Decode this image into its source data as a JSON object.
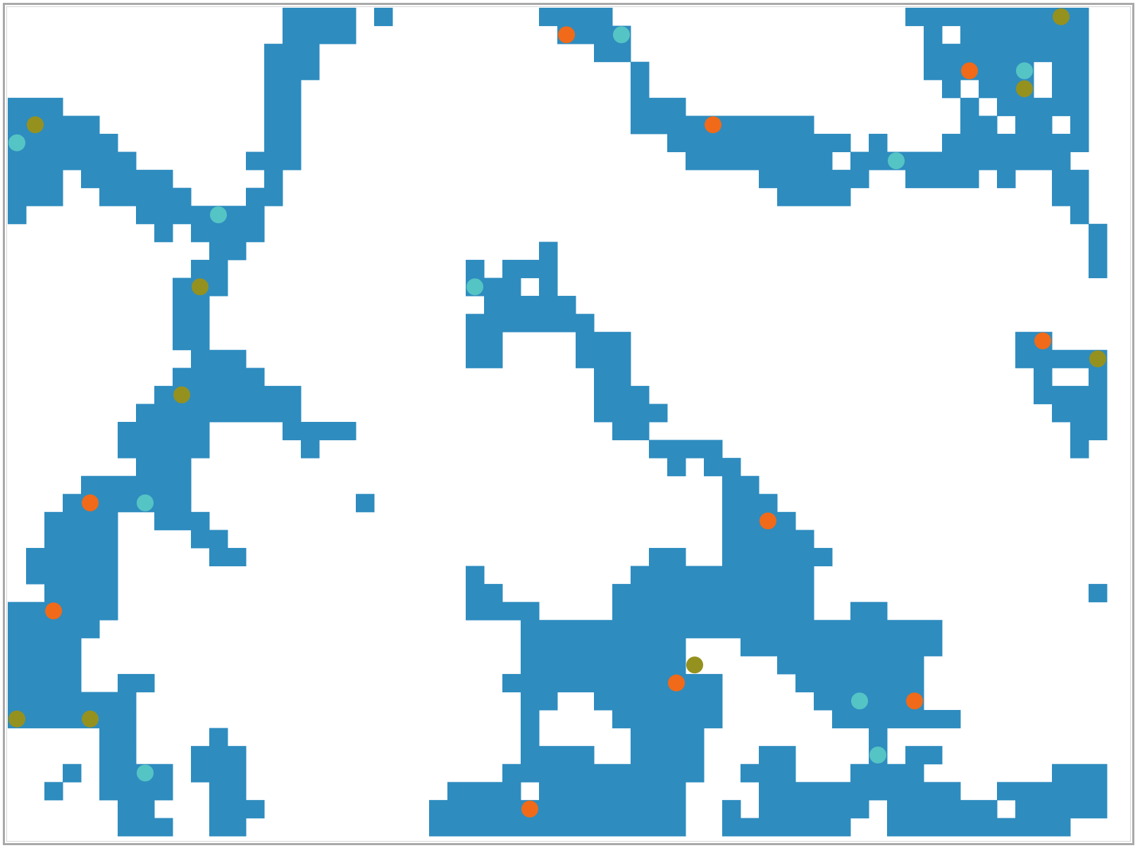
{
  "board": {
    "cols": 61,
    "rows": 46,
    "wall_color": "#2e8cbf",
    "floor_color": "#ffffff",
    "grid_rows": [
      "...............####.#.........####..........................#",
      "...............####..............##.........................#",
      "...............###.................#.........................",
      "...............###.................#.........................",
      "...............##..................#.........................",
      "..............###..................#.........................",
      "..............###..................#.........................",
      "..............###..................#.........................",
      "...............#.............................................",
      "..............##.............................................",
      "..............##.............................................",
      "..............##.............................................",
      "..............##.............................................",
      "..............##.............................................",
      "..............##.............................................",
      "..............##.............................................",
      "..............##.............................................",
      "..............##.............................................",
      "..............##.............................................",
      "..............##.............................................",
      "..............##.............................................",
      "..............##.............................................",
      "..............##.............................................",
      "..............##.............................................",
      "..............##.............................................",
      "..............##.............................................",
      "..............##.............................................",
      "..............##.............................................",
      "..............##.............................................",
      "..............##.............................................",
      "..............##.............................................",
      "..............##.............................................",
      "..............##.............................................",
      "..............##.............................................",
      "..............##.............................................",
      "..............##.............................................",
      "..............##.............................................",
      "..............##.............................................",
      "..............##.............................................",
      "..............##.............................................",
      "..............##.............................................",
      "..............##.............................................",
      "..............##.............................................",
      "..............##.............................................",
      "..............##.............................................",
      "..............##............................................."
    ],
    "wall_rects": [
      [
        15,
        0,
        4,
        1
      ],
      [
        20,
        0,
        1,
        1
      ],
      [
        29,
        0,
        4,
        1
      ],
      [
        49,
        0,
        10,
        1
      ],
      [
        15,
        1,
        4,
        1
      ],
      [
        30,
        1,
        4,
        1
      ],
      [
        50,
        1,
        1,
        1
      ],
      [
        52,
        1,
        7,
        1
      ],
      [
        14,
        2,
        3,
        1
      ],
      [
        32,
        2,
        2,
        1
      ],
      [
        50,
        2,
        9,
        1
      ],
      [
        14,
        3,
        3,
        1
      ],
      [
        34,
        3,
        1,
        1
      ],
      [
        50,
        3,
        6,
        1
      ],
      [
        57,
        3,
        2,
        1
      ],
      [
        14,
        4,
        2,
        1
      ],
      [
        34,
        4,
        1,
        1
      ],
      [
        51,
        4,
        1,
        1
      ],
      [
        53,
        4,
        3,
        1
      ],
      [
        57,
        4,
        2,
        1
      ],
      [
        0,
        5,
        3,
        1
      ],
      [
        14,
        5,
        2,
        1
      ],
      [
        34,
        5,
        3,
        1
      ],
      [
        52,
        5,
        1,
        1
      ],
      [
        54,
        5,
        4,
        1
      ],
      [
        58,
        5,
        1,
        1
      ],
      [
        0,
        6,
        5,
        1
      ],
      [
        14,
        6,
        2,
        1
      ],
      [
        34,
        6,
        10,
        1
      ],
      [
        52,
        6,
        2,
        1
      ],
      [
        55,
        6,
        2,
        1
      ],
      [
        58,
        6,
        1,
        1
      ],
      [
        0,
        7,
        6,
        1
      ],
      [
        14,
        7,
        2,
        1
      ],
      [
        36,
        7,
        10,
        1
      ],
      [
        47,
        7,
        1,
        1
      ],
      [
        51,
        7,
        8,
        1
      ],
      [
        0,
        8,
        7,
        1
      ],
      [
        13,
        8,
        3,
        1
      ],
      [
        37,
        8,
        8,
        1
      ],
      [
        46,
        8,
        12,
        1
      ],
      [
        0,
        9,
        3,
        1
      ],
      [
        4,
        9,
        5,
        1
      ],
      [
        14,
        9,
        1,
        1
      ],
      [
        41,
        9,
        6,
        1
      ],
      [
        49,
        9,
        4,
        1
      ],
      [
        54,
        9,
        1,
        1
      ],
      [
        57,
        9,
        2,
        1
      ],
      [
        0,
        10,
        3,
        1
      ],
      [
        5,
        10,
        5,
        1
      ],
      [
        13,
        10,
        2,
        1
      ],
      [
        42,
        10,
        4,
        1
      ],
      [
        57,
        10,
        2,
        1
      ],
      [
        0,
        11,
        1,
        1
      ],
      [
        7,
        11,
        7,
        1
      ],
      [
        58,
        11,
        1,
        1
      ],
      [
        8,
        12,
        1,
        1
      ],
      [
        10,
        12,
        4,
        1
      ],
      [
        59,
        12,
        1,
        1
      ],
      [
        11,
        13,
        2,
        1
      ],
      [
        29,
        13,
        1,
        1
      ],
      [
        59,
        13,
        1,
        1
      ],
      [
        10,
        14,
        2,
        1
      ],
      [
        25,
        14,
        1,
        1
      ],
      [
        27,
        14,
        3,
        1
      ],
      [
        59,
        14,
        1,
        1
      ],
      [
        9,
        15,
        3,
        1
      ],
      [
        25,
        15,
        3,
        1
      ],
      [
        29,
        15,
        1,
        1
      ],
      [
        9,
        16,
        2,
        1
      ],
      [
        26,
        16,
        5,
        1
      ],
      [
        9,
        17,
        2,
        1
      ],
      [
        25,
        17,
        7,
        1
      ],
      [
        9,
        18,
        2,
        1
      ],
      [
        25,
        18,
        2,
        1
      ],
      [
        31,
        18,
        3,
        1
      ],
      [
        55,
        18,
        2,
        1
      ],
      [
        10,
        19,
        3,
        1
      ],
      [
        25,
        19,
        2,
        1
      ],
      [
        31,
        19,
        3,
        1
      ],
      [
        55,
        19,
        5,
        1
      ],
      [
        9,
        20,
        5,
        1
      ],
      [
        32,
        20,
        2,
        1
      ],
      [
        56,
        20,
        1,
        1
      ],
      [
        59,
        20,
        1,
        1
      ],
      [
        8,
        21,
        8,
        1
      ],
      [
        32,
        21,
        3,
        1
      ],
      [
        56,
        21,
        4,
        1
      ],
      [
        7,
        22,
        9,
        1
      ],
      [
        32,
        22,
        4,
        1
      ],
      [
        57,
        22,
        3,
        1
      ],
      [
        6,
        23,
        5,
        1
      ],
      [
        15,
        23,
        4,
        1
      ],
      [
        33,
        23,
        2,
        1
      ],
      [
        58,
        23,
        2,
        1
      ],
      [
        6,
        24,
        5,
        1
      ],
      [
        16,
        24,
        1,
        1
      ],
      [
        35,
        24,
        4,
        1
      ],
      [
        58,
        24,
        1,
        1
      ],
      [
        7,
        25,
        3,
        1
      ],
      [
        36,
        25,
        1,
        1
      ],
      [
        38,
        25,
        2,
        1
      ],
      [
        4,
        26,
        6,
        1
      ],
      [
        39,
        26,
        2,
        1
      ],
      [
        3,
        27,
        7,
        1
      ],
      [
        19,
        27,
        1,
        1
      ],
      [
        39,
        27,
        3,
        1
      ],
      [
        2,
        28,
        4,
        1
      ],
      [
        8,
        28,
        3,
        1
      ],
      [
        39,
        28,
        4,
        1
      ],
      [
        2,
        29,
        4,
        1
      ],
      [
        10,
        29,
        2,
        1
      ],
      [
        39,
        29,
        5,
        1
      ],
      [
        1,
        30,
        5,
        1
      ],
      [
        11,
        30,
        2,
        1
      ],
      [
        35,
        30,
        2,
        1
      ],
      [
        39,
        30,
        6,
        1
      ],
      [
        1,
        31,
        5,
        1
      ],
      [
        25,
        31,
        1,
        1
      ],
      [
        34,
        31,
        10,
        1
      ],
      [
        2,
        32,
        4,
        1
      ],
      [
        25,
        32,
        2,
        1
      ],
      [
        33,
        32,
        11,
        1
      ],
      [
        59,
        32,
        1,
        1
      ],
      [
        0,
        33,
        6,
        1
      ],
      [
        25,
        33,
        4,
        1
      ],
      [
        33,
        33,
        11,
        1
      ],
      [
        46,
        33,
        2,
        1
      ],
      [
        0,
        34,
        5,
        1
      ],
      [
        28,
        34,
        23,
        1
      ],
      [
        0,
        35,
        4,
        1
      ],
      [
        28,
        35,
        9,
        1
      ],
      [
        40,
        35,
        11,
        1
      ],
      [
        0,
        36,
        4,
        1
      ],
      [
        28,
        36,
        9,
        1
      ],
      [
        42,
        36,
        8,
        1
      ],
      [
        0,
        37,
        4,
        1
      ],
      [
        6,
        37,
        2,
        1
      ],
      [
        27,
        37,
        12,
        1
      ],
      [
        43,
        37,
        7,
        1
      ],
      [
        0,
        38,
        7,
        1
      ],
      [
        28,
        38,
        2,
        1
      ],
      [
        32,
        38,
        7,
        1
      ],
      [
        44,
        38,
        6,
        1
      ],
      [
        0,
        39,
        7,
        1
      ],
      [
        28,
        39,
        1,
        1
      ],
      [
        33,
        39,
        6,
        1
      ],
      [
        45,
        39,
        7,
        1
      ],
      [
        5,
        40,
        2,
        1
      ],
      [
        11,
        40,
        1,
        1
      ],
      [
        28,
        40,
        1,
        1
      ],
      [
        34,
        40,
        4,
        1
      ],
      [
        47,
        40,
        1,
        1
      ],
      [
        5,
        41,
        2,
        1
      ],
      [
        10,
        41,
        3,
        1
      ],
      [
        28,
        41,
        4,
        1
      ],
      [
        34,
        41,
        4,
        1
      ],
      [
        41,
        41,
        2,
        1
      ],
      [
        47,
        41,
        1,
        1
      ],
      [
        49,
        41,
        2,
        1
      ],
      [
        3,
        42,
        1,
        1
      ],
      [
        5,
        42,
        4,
        1
      ],
      [
        10,
        42,
        3,
        1
      ],
      [
        27,
        42,
        11,
        1
      ],
      [
        40,
        42,
        3,
        1
      ],
      [
        46,
        42,
        4,
        1
      ],
      [
        57,
        42,
        3,
        1
      ],
      [
        2,
        43,
        1,
        1
      ],
      [
        5,
        43,
        4,
        1
      ],
      [
        11,
        43,
        2,
        1
      ],
      [
        24,
        43,
        4,
        1
      ],
      [
        29,
        43,
        8,
        1
      ],
      [
        41,
        43,
        11,
        1
      ],
      [
        54,
        43,
        6,
        1
      ],
      [
        6,
        44,
        2,
        1
      ],
      [
        11,
        44,
        3,
        1
      ],
      [
        23,
        44,
        14,
        1
      ],
      [
        39,
        44,
        1,
        1
      ],
      [
        41,
        44,
        6,
        1
      ],
      [
        48,
        44,
        6,
        1
      ],
      [
        55,
        44,
        5,
        1
      ],
      [
        6,
        45,
        3,
        1
      ],
      [
        11,
        45,
        2,
        1
      ],
      [
        23,
        45,
        14,
        1
      ],
      [
        39,
        45,
        7,
        1
      ],
      [
        48,
        45,
        10,
        1
      ]
    ],
    "markers": [
      {
        "type": "orange",
        "color": "#f06a19",
        "cells": [
          [
            30,
            1
          ],
          [
            52,
            3
          ],
          [
            38,
            6
          ],
          [
            4,
            27
          ],
          [
            56,
            18
          ],
          [
            41,
            28
          ],
          [
            2,
            33
          ],
          [
            36,
            37
          ],
          [
            49,
            38
          ],
          [
            28,
            44
          ]
        ]
      },
      {
        "type": "teal",
        "color": "#55c4c4",
        "cells": [
          [
            33,
            1
          ],
          [
            55,
            3
          ],
          [
            0,
            7
          ],
          [
            48,
            8
          ],
          [
            11,
            11
          ],
          [
            25,
            15
          ],
          [
            7,
            27
          ],
          [
            46,
            38
          ],
          [
            47,
            41
          ],
          [
            7,
            42
          ]
        ]
      },
      {
        "type": "olive",
        "color": "#95911f",
        "cells": [
          [
            57,
            0
          ],
          [
            55,
            4
          ],
          [
            1,
            6
          ],
          [
            10,
            15
          ],
          [
            9,
            21
          ],
          [
            59,
            19
          ],
          [
            37,
            36
          ],
          [
            0,
            39
          ],
          [
            4,
            39
          ]
        ]
      }
    ]
  }
}
